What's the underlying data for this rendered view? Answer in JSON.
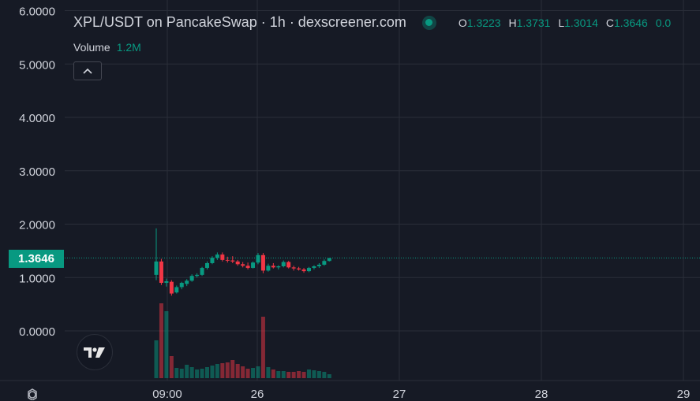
{
  "header": {
    "title": "XPL/USDT on PancakeSwap · 1h · dexscreener.com",
    "ohlc": [
      {
        "key": "O",
        "value": "1.3223"
      },
      {
        "key": "H",
        "value": "1.3731"
      },
      {
        "key": "L",
        "value": "1.3014"
      },
      {
        "key": "C",
        "value": "1.3646"
      },
      {
        "key": "",
        "value": "0.0"
      }
    ]
  },
  "volume_legend": {
    "label": "Volume",
    "value": "1.2M"
  },
  "price_tag": "1.3646",
  "colors": {
    "up": "#089981",
    "down": "#f23645",
    "background": "#161a25",
    "grid": "#2a2e39"
  },
  "icons": {
    "status": "live-dot-icon",
    "collapse": "chevron-up-icon",
    "logo": "tradingview-logo-icon",
    "settings": "settings-gear-icon"
  },
  "chart_data": {
    "type": "candlestick",
    "ylim": [
      -0.6,
      6.0
    ],
    "y_ticks": [
      "6.0000",
      "5.0000",
      "4.0000",
      "3.0000",
      "2.0000",
      "1.0000",
      "0.0000"
    ],
    "y_tick_values": [
      6,
      5,
      4,
      3,
      2,
      1,
      0
    ],
    "x_ticks": [
      "09:00",
      "26",
      "27",
      "28",
      "29"
    ],
    "current_price": 1.3646,
    "candles": [
      {
        "o": 1.05,
        "h": 1.92,
        "l": 0.95,
        "c": 1.3,
        "v": 0.48
      },
      {
        "o": 1.3,
        "h": 1.35,
        "l": 0.86,
        "c": 0.9,
        "v": 0.95
      },
      {
        "o": 0.9,
        "h": 0.98,
        "l": 0.83,
        "c": 0.93,
        "v": 0.85
      },
      {
        "o": 0.92,
        "h": 0.95,
        "l": 0.66,
        "c": 0.7,
        "v": 0.28
      },
      {
        "o": 0.72,
        "h": 0.85,
        "l": 0.7,
        "c": 0.82,
        "v": 0.13
      },
      {
        "o": 0.82,
        "h": 0.92,
        "l": 0.78,
        "c": 0.9,
        "v": 0.12
      },
      {
        "o": 0.88,
        "h": 0.97,
        "l": 0.84,
        "c": 0.94,
        "v": 0.17
      },
      {
        "o": 0.94,
        "h": 1.06,
        "l": 0.92,
        "c": 1.03,
        "v": 0.14
      },
      {
        "o": 1.03,
        "h": 1.08,
        "l": 1.0,
        "c": 1.05,
        "v": 0.11
      },
      {
        "o": 1.05,
        "h": 1.2,
        "l": 1.03,
        "c": 1.18,
        "v": 0.12
      },
      {
        "o": 1.18,
        "h": 1.3,
        "l": 1.15,
        "c": 1.27,
        "v": 0.14
      },
      {
        "o": 1.27,
        "h": 1.4,
        "l": 1.25,
        "c": 1.37,
        "v": 0.16
      },
      {
        "o": 1.37,
        "h": 1.47,
        "l": 1.33,
        "c": 1.43,
        "v": 0.18
      },
      {
        "o": 1.43,
        "h": 1.47,
        "l": 1.3,
        "c": 1.33,
        "v": 0.19
      },
      {
        "o": 1.33,
        "h": 1.39,
        "l": 1.28,
        "c": 1.32,
        "v": 0.2
      },
      {
        "o": 1.32,
        "h": 1.4,
        "l": 1.27,
        "c": 1.3,
        "v": 0.23
      },
      {
        "o": 1.3,
        "h": 1.33,
        "l": 1.22,
        "c": 1.25,
        "v": 0.18
      },
      {
        "o": 1.25,
        "h": 1.29,
        "l": 1.19,
        "c": 1.22,
        "v": 0.15
      },
      {
        "o": 1.22,
        "h": 1.28,
        "l": 1.15,
        "c": 1.18,
        "v": 0.12
      },
      {
        "o": 1.18,
        "h": 1.3,
        "l": 1.17,
        "c": 1.28,
        "v": 0.13
      },
      {
        "o": 1.28,
        "h": 1.46,
        "l": 1.25,
        "c": 1.42,
        "v": 0.15
      },
      {
        "o": 1.42,
        "h": 1.46,
        "l": 1.08,
        "c": 1.13,
        "v": 0.78
      },
      {
        "o": 1.13,
        "h": 1.26,
        "l": 1.11,
        "c": 1.22,
        "v": 0.14
      },
      {
        "o": 1.22,
        "h": 1.27,
        "l": 1.17,
        "c": 1.19,
        "v": 0.11
      },
      {
        "o": 1.19,
        "h": 1.23,
        "l": 1.15,
        "c": 1.21,
        "v": 0.09
      },
      {
        "o": 1.21,
        "h": 1.32,
        "l": 1.19,
        "c": 1.29,
        "v": 0.09
      },
      {
        "o": 1.29,
        "h": 1.31,
        "l": 1.17,
        "c": 1.19,
        "v": 0.08
      },
      {
        "o": 1.19,
        "h": 1.22,
        "l": 1.13,
        "c": 1.17,
        "v": 0.08
      },
      {
        "o": 1.17,
        "h": 1.2,
        "l": 1.13,
        "c": 1.15,
        "v": 0.09
      },
      {
        "o": 1.15,
        "h": 1.18,
        "l": 1.09,
        "c": 1.12,
        "v": 0.08
      },
      {
        "o": 1.12,
        "h": 1.2,
        "l": 1.1,
        "c": 1.18,
        "v": 0.11
      },
      {
        "o": 1.18,
        "h": 1.23,
        "l": 1.15,
        "c": 1.21,
        "v": 0.1
      },
      {
        "o": 1.21,
        "h": 1.27,
        "l": 1.18,
        "c": 1.24,
        "v": 0.09
      },
      {
        "o": 1.24,
        "h": 1.34,
        "l": 1.22,
        "c": 1.31,
        "v": 0.08
      },
      {
        "o": 1.31,
        "h": 1.37,
        "l": 1.3,
        "c": 1.36,
        "v": 0.05
      }
    ]
  }
}
